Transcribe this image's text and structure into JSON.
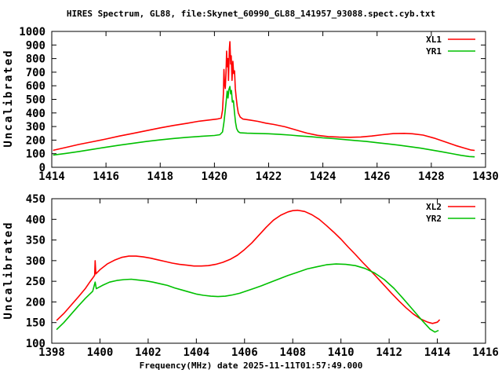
{
  "figure": {
    "title": "HIRES Spectrum, GL88, file:Skynet_60990_GL88_141957_93088.spect.cyb.txt",
    "xlabel": "Frequency(MHz) date 2025-11-11T01:57:49.000",
    "background": "#ffffff",
    "axis_color": "#000000",
    "series1_color": "#ff0000",
    "series2_color": "#00c000"
  },
  "chart_data": [
    {
      "type": "line",
      "ylabel": "Uncalibrated",
      "xlim": [
        1414,
        1430
      ],
      "ylim": [
        0,
        1000
      ],
      "xticks": [
        1414,
        1416,
        1418,
        1420,
        1422,
        1424,
        1426,
        1428,
        1430
      ],
      "yticks": [
        0,
        100,
        200,
        300,
        400,
        500,
        600,
        700,
        800,
        900,
        1000
      ],
      "grid": false,
      "legend_position": "top-right",
      "series": [
        {
          "name": "XL1",
          "color": "#ff0000",
          "points": [
            [
              1414.05,
              125
            ],
            [
              1414.5,
              145
            ],
            [
              1415,
              168
            ],
            [
              1415.5,
              188
            ],
            [
              1416,
              208
            ],
            [
              1416.5,
              230
            ],
            [
              1417,
              250
            ],
            [
              1417.5,
              270
            ],
            [
              1418,
              290
            ],
            [
              1418.5,
              308
            ],
            [
              1419,
              324
            ],
            [
              1419.4,
              338
            ],
            [
              1419.8,
              348
            ],
            [
              1420.1,
              355
            ],
            [
              1420.25,
              362
            ],
            [
              1420.3,
              420
            ],
            [
              1420.33,
              540
            ],
            [
              1420.35,
              720
            ],
            [
              1420.37,
              620
            ],
            [
              1420.4,
              580
            ],
            [
              1420.43,
              700
            ],
            [
              1420.45,
              855
            ],
            [
              1420.47,
              740
            ],
            [
              1420.5,
              800
            ],
            [
              1420.52,
              640
            ],
            [
              1420.55,
              870
            ],
            [
              1420.57,
              925
            ],
            [
              1420.6,
              760
            ],
            [
              1420.62,
              820
            ],
            [
              1420.65,
              640
            ],
            [
              1420.68,
              780
            ],
            [
              1420.71,
              690
            ],
            [
              1420.74,
              710
            ],
            [
              1420.77,
              580
            ],
            [
              1420.8,
              520
            ],
            [
              1420.84,
              450
            ],
            [
              1420.88,
              400
            ],
            [
              1420.95,
              370
            ],
            [
              1421.05,
              355
            ],
            [
              1421.3,
              348
            ],
            [
              1421.6,
              338
            ],
            [
              1421.9,
              325
            ],
            [
              1422.2,
              315
            ],
            [
              1422.6,
              298
            ],
            [
              1423.0,
              275
            ],
            [
              1423.4,
              252
            ],
            [
              1423.8,
              235
            ],
            [
              1424.2,
              226
            ],
            [
              1424.6,
              222
            ],
            [
              1425.0,
              221
            ],
            [
              1425.4,
              223
            ],
            [
              1425.8,
              230
            ],
            [
              1426.2,
              240
            ],
            [
              1426.6,
              248
            ],
            [
              1427.0,
              250
            ],
            [
              1427.3,
              247
            ],
            [
              1427.7,
              237
            ],
            [
              1428.1,
              215
            ],
            [
              1428.5,
              188
            ],
            [
              1428.9,
              160
            ],
            [
              1429.2,
              142
            ],
            [
              1429.45,
              128
            ],
            [
              1429.6,
              124
            ]
          ]
        },
        {
          "name": "YR1",
          "color": "#00c000",
          "points": [
            [
              1414.05,
              90
            ],
            [
              1414.5,
              102
            ],
            [
              1415,
              116
            ],
            [
              1415.5,
              132
            ],
            [
              1416,
              148
            ],
            [
              1416.5,
              163
            ],
            [
              1417,
              177
            ],
            [
              1417.5,
              190
            ],
            [
              1418,
              202
            ],
            [
              1418.5,
              212
            ],
            [
              1419,
              221
            ],
            [
              1419.5,
              228
            ],
            [
              1420.0,
              234
            ],
            [
              1420.2,
              240
            ],
            [
              1420.3,
              260
            ],
            [
              1420.35,
              330
            ],
            [
              1420.4,
              420
            ],
            [
              1420.44,
              500
            ],
            [
              1420.47,
              560
            ],
            [
              1420.5,
              510
            ],
            [
              1420.53,
              570
            ],
            [
              1420.57,
              595
            ],
            [
              1420.6,
              540
            ],
            [
              1420.63,
              565
            ],
            [
              1420.66,
              480
            ],
            [
              1420.7,
              490
            ],
            [
              1420.74,
              400
            ],
            [
              1420.78,
              330
            ],
            [
              1420.82,
              285
            ],
            [
              1420.88,
              262
            ],
            [
              1420.95,
              254
            ],
            [
              1421.2,
              251
            ],
            [
              1421.6,
              249
            ],
            [
              1422.0,
              247
            ],
            [
              1422.4,
              242
            ],
            [
              1422.8,
              237
            ],
            [
              1423.2,
              230
            ],
            [
              1423.6,
              224
            ],
            [
              1424.0,
              217
            ],
            [
              1424.4,
              211
            ],
            [
              1424.8,
              204
            ],
            [
              1425.2,
              197
            ],
            [
              1425.6,
              190
            ],
            [
              1426.0,
              181
            ],
            [
              1426.4,
              172
            ],
            [
              1426.8,
              163
            ],
            [
              1427.2,
              152
            ],
            [
              1427.6,
              141
            ],
            [
              1428.0,
              128
            ],
            [
              1428.4,
              114
            ],
            [
              1428.8,
              99
            ],
            [
              1429.1,
              88
            ],
            [
              1429.4,
              79
            ],
            [
              1429.6,
              77
            ]
          ]
        }
      ]
    },
    {
      "type": "line",
      "ylabel": "Uncalibrated",
      "xlim": [
        1398,
        1416
      ],
      "ylim": [
        100,
        450
      ],
      "xticks": [
        1398,
        1400,
        1402,
        1404,
        1406,
        1408,
        1410,
        1412,
        1414,
        1416
      ],
      "yticks": [
        100,
        150,
        200,
        250,
        300,
        350,
        400,
        450
      ],
      "grid": false,
      "legend_position": "top-right",
      "series": [
        {
          "name": "XL2",
          "color": "#ff0000",
          "points": [
            [
              1398.2,
              155
            ],
            [
              1398.5,
              172
            ],
            [
              1398.8,
              192
            ],
            [
              1399.1,
              212
            ],
            [
              1399.4,
              233
            ],
            [
              1399.6,
              250
            ],
            [
              1399.75,
              262
            ],
            [
              1399.78,
              265
            ],
            [
              1399.8,
              300
            ],
            [
              1399.83,
              268
            ],
            [
              1400.0,
              278
            ],
            [
              1400.3,
              292
            ],
            [
              1400.6,
              301
            ],
            [
              1400.9,
              308
            ],
            [
              1401.2,
              311
            ],
            [
              1401.5,
              311
            ],
            [
              1401.8,
              309
            ],
            [
              1402.1,
              306
            ],
            [
              1402.4,
              302
            ],
            [
              1402.7,
              298
            ],
            [
              1403.0,
              294
            ],
            [
              1403.3,
              291
            ],
            [
              1403.6,
              289
            ],
            [
              1403.9,
              287
            ],
            [
              1404.2,
              287
            ],
            [
              1404.5,
              288
            ],
            [
              1404.8,
              291
            ],
            [
              1405.1,
              296
            ],
            [
              1405.4,
              303
            ],
            [
              1405.7,
              313
            ],
            [
              1406.0,
              327
            ],
            [
              1406.3,
              343
            ],
            [
              1406.6,
              362
            ],
            [
              1406.9,
              381
            ],
            [
              1407.2,
              398
            ],
            [
              1407.5,
              410
            ],
            [
              1407.8,
              418
            ],
            [
              1408.0,
              421
            ],
            [
              1408.2,
              422
            ],
            [
              1408.5,
              419
            ],
            [
              1408.8,
              411
            ],
            [
              1409.1,
              400
            ],
            [
              1409.4,
              385
            ],
            [
              1409.7,
              369
            ],
            [
              1410.0,
              352
            ],
            [
              1410.3,
              333
            ],
            [
              1410.6,
              315
            ],
            [
              1410.9,
              296
            ],
            [
              1411.2,
              278
            ],
            [
              1411.5,
              259
            ],
            [
              1411.8,
              240
            ],
            [
              1412.1,
              221
            ],
            [
              1412.4,
              203
            ],
            [
              1412.7,
              186
            ],
            [
              1413.0,
              171
            ],
            [
              1413.3,
              159
            ],
            [
              1413.6,
              151
            ],
            [
              1413.8,
              148
            ],
            [
              1414.0,
              151
            ],
            [
              1414.1,
              157
            ]
          ]
        },
        {
          "name": "YR2",
          "color": "#00c000",
          "points": [
            [
              1398.2,
              133
            ],
            [
              1398.5,
              150
            ],
            [
              1398.8,
              170
            ],
            [
              1399.1,
              190
            ],
            [
              1399.4,
              209
            ],
            [
              1399.7,
              226
            ],
            [
              1399.8,
              248
            ],
            [
              1399.85,
              232
            ],
            [
              1400.1,
              240
            ],
            [
              1400.4,
              248
            ],
            [
              1400.7,
              252
            ],
            [
              1401.0,
              254
            ],
            [
              1401.3,
              255
            ],
            [
              1401.6,
              253
            ],
            [
              1401.9,
              251
            ],
            [
              1402.2,
              248
            ],
            [
              1402.5,
              244
            ],
            [
              1402.8,
              240
            ],
            [
              1403.1,
              234
            ],
            [
              1403.4,
              229
            ],
            [
              1403.7,
              224
            ],
            [
              1404.0,
              219
            ],
            [
              1404.3,
              216
            ],
            [
              1404.6,
              214
            ],
            [
              1404.9,
              213
            ],
            [
              1405.2,
              214
            ],
            [
              1405.5,
              217
            ],
            [
              1405.8,
              221
            ],
            [
              1406.1,
              227
            ],
            [
              1406.4,
              233
            ],
            [
              1406.7,
              239
            ],
            [
              1407.0,
              246
            ],
            [
              1407.4,
              255
            ],
            [
              1407.8,
              264
            ],
            [
              1408.2,
              272
            ],
            [
              1408.6,
              280
            ],
            [
              1409.0,
              285
            ],
            [
              1409.4,
              290
            ],
            [
              1409.8,
              292
            ],
            [
              1410.2,
              291
            ],
            [
              1410.6,
              288
            ],
            [
              1411.0,
              281
            ],
            [
              1411.4,
              270
            ],
            [
              1411.8,
              254
            ],
            [
              1412.2,
              233
            ],
            [
              1412.6,
              207
            ],
            [
              1413.0,
              180
            ],
            [
              1413.4,
              153
            ],
            [
              1413.7,
              134
            ],
            [
              1413.9,
              127
            ],
            [
              1414.05,
              131
            ]
          ]
        }
      ]
    }
  ]
}
